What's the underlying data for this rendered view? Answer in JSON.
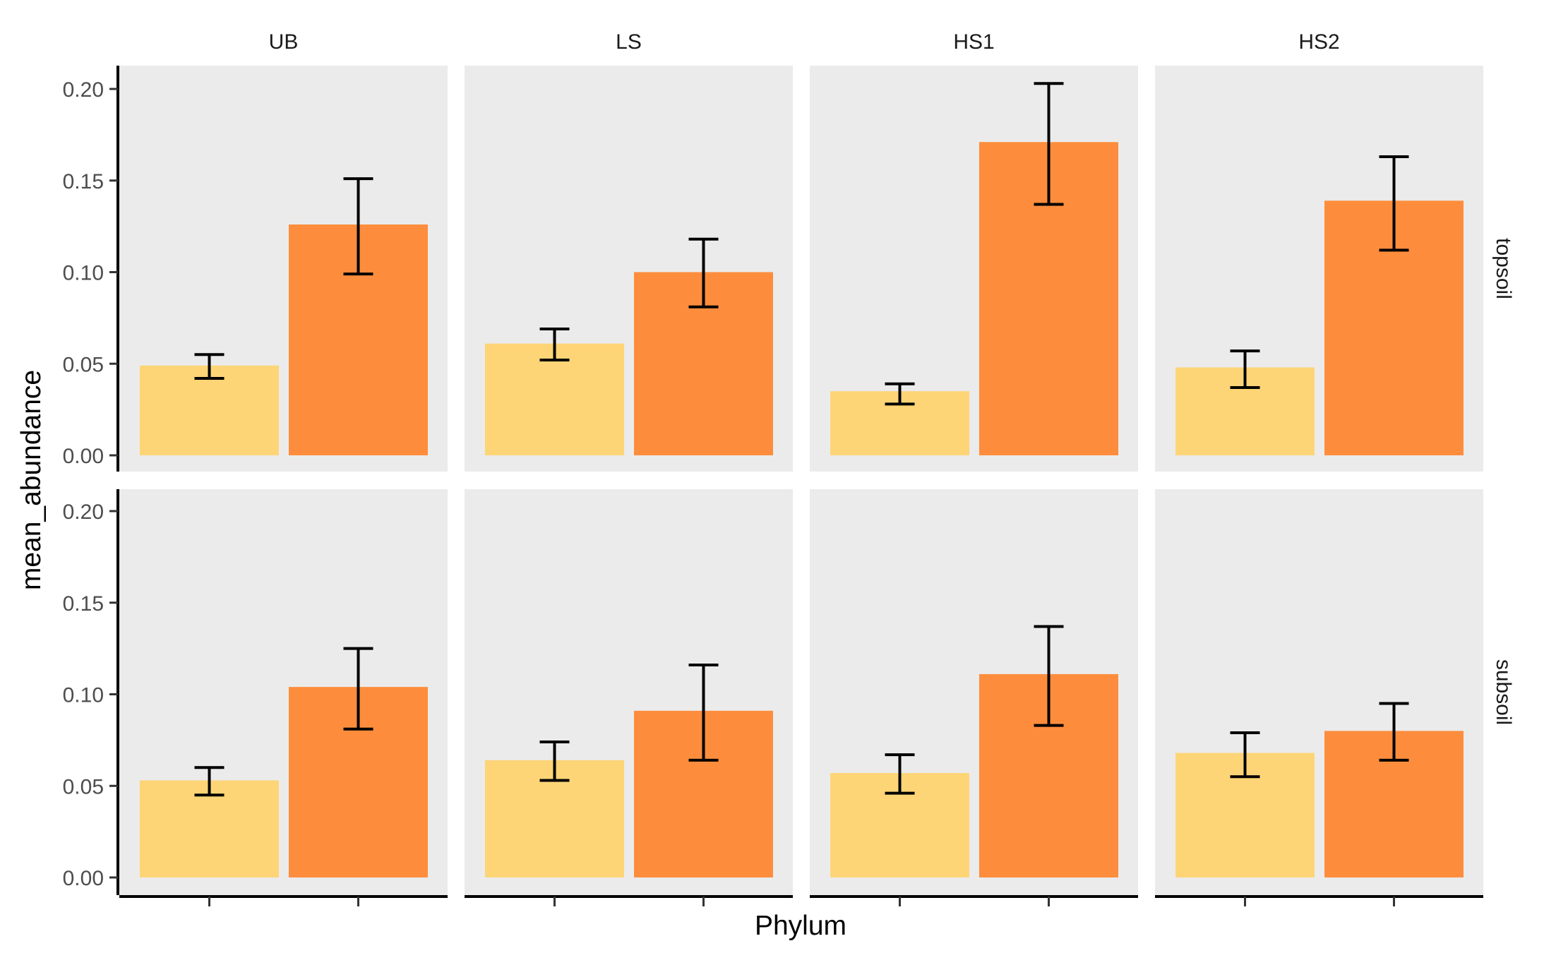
{
  "chart_data": {
    "type": "bar",
    "xlabel": "Phylum",
    "ylabel": "mean_abundance",
    "ylim": [
      0,
      0.2
    ],
    "yticks": [
      "0.00",
      "0.05",
      "0.10",
      "0.15",
      "0.20"
    ],
    "facet_columns": [
      "UB",
      "LS",
      "HS1",
      "HS2"
    ],
    "facet_rows": [
      "topsoil",
      "subsoil"
    ],
    "bar_colors": [
      "#FDD576",
      "#FD8D3C"
    ],
    "panel_background": "#EBEBEB",
    "grid": false,
    "legend": "none",
    "panels": [
      {
        "column": "UB",
        "row": "topsoil",
        "values": [
          0.049,
          0.126
        ],
        "error_low": [
          0.042,
          0.099
        ],
        "error_high": [
          0.055,
          0.151
        ]
      },
      {
        "column": "LS",
        "row": "topsoil",
        "values": [
          0.061,
          0.1
        ],
        "error_low": [
          0.052,
          0.081
        ],
        "error_high": [
          0.069,
          0.118
        ]
      },
      {
        "column": "HS1",
        "row": "topsoil",
        "values": [
          0.035,
          0.171
        ],
        "error_low": [
          0.028,
          0.137
        ],
        "error_high": [
          0.039,
          0.203
        ]
      },
      {
        "column": "HS2",
        "row": "topsoil",
        "values": [
          0.048,
          0.139
        ],
        "error_low": [
          0.037,
          0.112
        ],
        "error_high": [
          0.057,
          0.163
        ]
      },
      {
        "column": "UB",
        "row": "subsoil",
        "values": [
          0.053,
          0.104
        ],
        "error_low": [
          0.045,
          0.081
        ],
        "error_high": [
          0.06,
          0.125
        ]
      },
      {
        "column": "LS",
        "row": "subsoil",
        "values": [
          0.064,
          0.091
        ],
        "error_low": [
          0.053,
          0.064
        ],
        "error_high": [
          0.074,
          0.116
        ]
      },
      {
        "column": "HS1",
        "row": "subsoil",
        "values": [
          0.057,
          0.111
        ],
        "error_low": [
          0.046,
          0.083
        ],
        "error_high": [
          0.067,
          0.137
        ]
      },
      {
        "column": "HS2",
        "row": "subsoil",
        "values": [
          0.068,
          0.08
        ],
        "error_low": [
          0.055,
          0.064
        ],
        "error_high": [
          0.079,
          0.095
        ]
      }
    ]
  }
}
